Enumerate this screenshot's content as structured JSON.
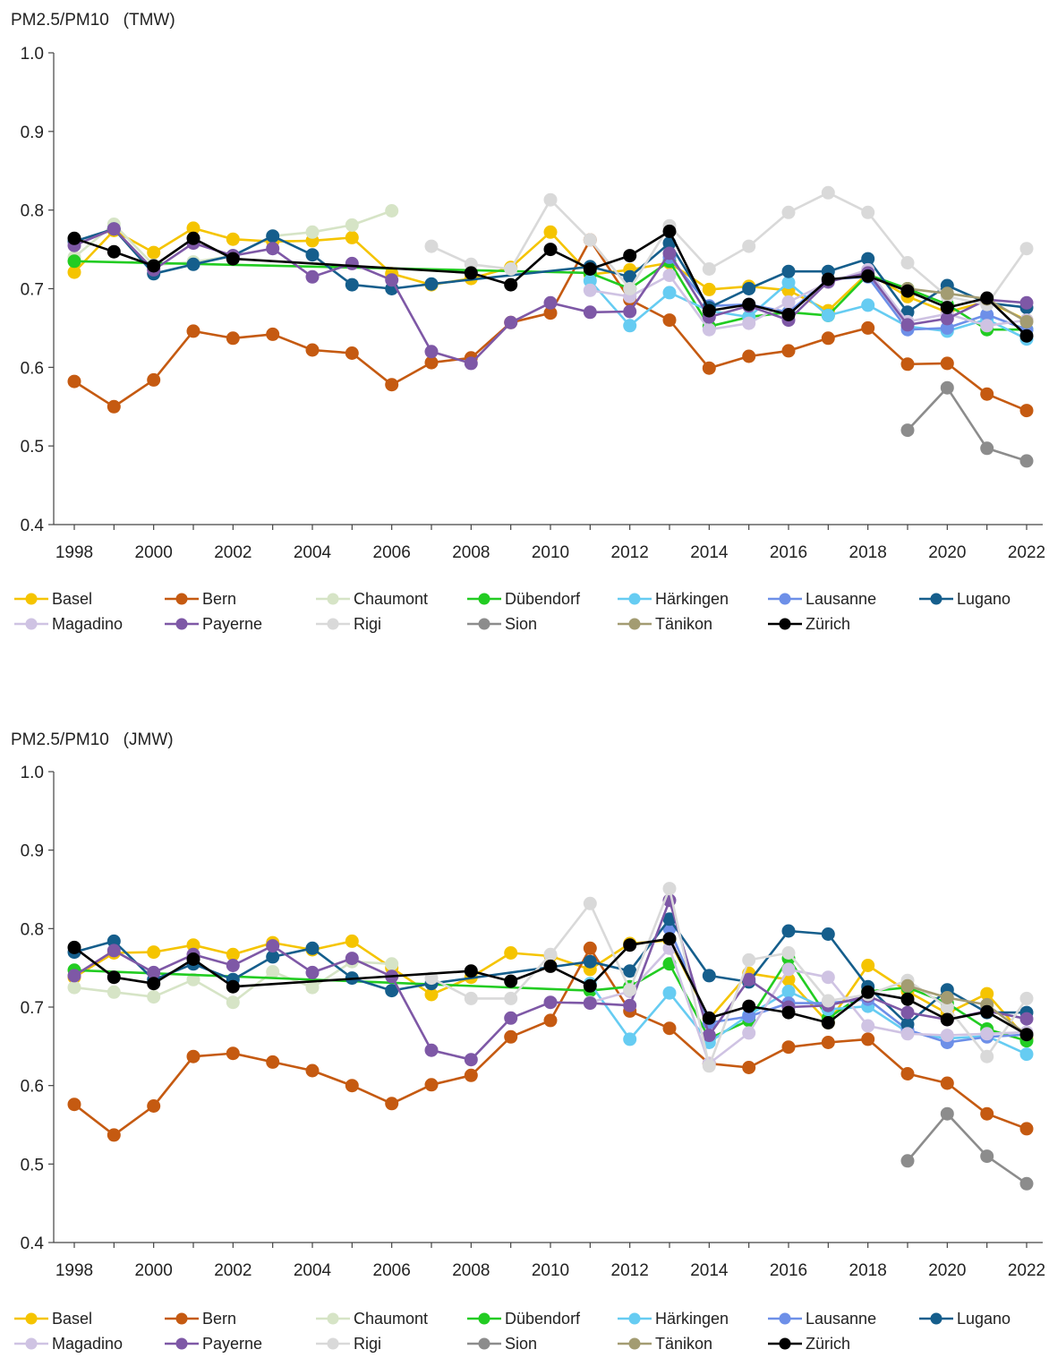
{
  "chart_data": [
    {
      "type": "line",
      "title": "PM2.5/PM10   (TMW)",
      "xlabel": "",
      "ylabel": "",
      "xlim": [
        1998,
        2022
      ],
      "ylim": [
        0.4,
        1.0
      ],
      "yticks": [
        "0.4",
        "0.5",
        "0.6",
        "0.7",
        "0.8",
        "0.9",
        "1.0"
      ],
      "xticks": [
        "1998",
        "2000",
        "2002",
        "2004",
        "2006",
        "2008",
        "2010",
        "2012",
        "2014",
        "2016",
        "2018",
        "2020",
        "2022"
      ],
      "legend_position": "bottom",
      "series": [
        {
          "name": "Basel",
          "color": "#f5c400",
          "x": [
            1998,
            1999,
            2000,
            2001,
            2002,
            2003,
            2004,
            2005,
            2006,
            2007,
            2008,
            2009,
            2010,
            2011,
            2012,
            2013,
            2014,
            2015,
            2016,
            2017,
            2018,
            2019,
            2020,
            2021,
            2022
          ],
          "y": [
            0.721,
            0.774,
            0.746,
            0.777,
            0.763,
            0.76,
            0.761,
            0.765,
            0.719,
            0.705,
            0.713,
            0.727,
            0.772,
            0.718,
            0.724,
            0.733,
            0.699,
            0.703,
            0.698,
            0.672,
            0.72,
            0.69,
            0.67,
            0.684,
            0.66
          ]
        },
        {
          "name": "Bern",
          "color": "#c55a11",
          "x": [
            1998,
            1999,
            2000,
            2001,
            2002,
            2003,
            2004,
            2005,
            2006,
            2007,
            2008,
            2009,
            2010,
            2011,
            2012,
            2013,
            2014,
            2015,
            2016,
            2017,
            2018,
            2019,
            2020,
            2021,
            2022
          ],
          "y": [
            0.582,
            0.55,
            0.584,
            0.646,
            0.637,
            0.642,
            0.622,
            0.618,
            0.578,
            0.606,
            0.612,
            0.657,
            0.669,
            0.762,
            0.686,
            0.66,
            0.599,
            0.614,
            0.621,
            0.637,
            0.65,
            0.604,
            0.605,
            0.566,
            0.545
          ]
        },
        {
          "name": "Chaumont",
          "color": "#d6e4c6",
          "x": [
            1998,
            1999,
            2000,
            2001,
            2002,
            2003,
            2004,
            2005,
            2006
          ],
          "y": [
            0.74,
            0.782,
            0.73,
            0.734,
            0.742,
            0.767,
            0.772,
            0.781,
            0.799
          ]
        },
        {
          "name": "Dübendorf",
          "color": "#22cc22",
          "x": [
            1998,
            2011,
            2012,
            2013,
            2014,
            2015,
            2016,
            2017,
            2018,
            2019,
            2020,
            2021,
            2022
          ],
          "y": [
            0.735,
            0.72,
            0.7,
            0.735,
            0.652,
            0.664,
            0.67,
            0.666,
            0.718,
            0.7,
            0.68,
            0.648,
            0.648
          ]
        },
        {
          "name": "Härkingen",
          "color": "#66ccf2",
          "x": [
            2011,
            2012,
            2013,
            2014,
            2015,
            2016,
            2017,
            2018,
            2019,
            2020,
            2021,
            2022
          ],
          "y": [
            0.71,
            0.653,
            0.695,
            0.672,
            0.664,
            0.708,
            0.666,
            0.679,
            0.652,
            0.646,
            0.661,
            0.636
          ]
        },
        {
          "name": "Lausanne",
          "color": "#6d8fe8",
          "x": [
            2013,
            2014,
            2015,
            2016,
            2017,
            2018,
            2019,
            2020,
            2021,
            2022
          ],
          "y": [
            0.74,
            0.678,
            0.68,
            0.67,
            0.712,
            0.715,
            0.648,
            0.65,
            0.667,
            0.648
          ]
        },
        {
          "name": "Lugano",
          "color": "#155e8c",
          "x": [
            1998,
            1999,
            2000,
            2001,
            2002,
            2003,
            2004,
            2005,
            2006,
            2007,
            2011,
            2012,
            2013,
            2014,
            2015,
            2016,
            2017,
            2018,
            2019,
            2020,
            2021,
            2022
          ],
          "y": [
            0.76,
            0.776,
            0.719,
            0.731,
            0.742,
            0.767,
            0.743,
            0.705,
            0.7,
            0.706,
            0.728,
            0.715,
            0.758,
            0.676,
            0.7,
            0.722,
            0.722,
            0.738,
            0.67,
            0.704,
            0.682,
            0.676
          ]
        },
        {
          "name": "Magadino",
          "color": "#cfc3e3",
          "x": [
            2011,
            2012,
            2013,
            2014,
            2015,
            2016,
            2017,
            2018,
            2019,
            2020,
            2021,
            2022
          ],
          "y": [
            0.698,
            0.69,
            0.717,
            0.648,
            0.656,
            0.683,
            0.708,
            0.724,
            0.658,
            0.668,
            0.653,
            0.66
          ]
        },
        {
          "name": "Payerne",
          "color": "#7e58a6",
          "x": [
            1998,
            1999,
            2000,
            2001,
            2002,
            2003,
            2004,
            2005,
            2006,
            2007,
            2008,
            2009,
            2010,
            2011,
            2012,
            2013,
            2014,
            2015,
            2016,
            2017,
            2018,
            2019,
            2020,
            2021,
            2022
          ],
          "y": [
            0.755,
            0.776,
            0.724,
            0.758,
            0.742,
            0.751,
            0.715,
            0.732,
            0.711,
            0.62,
            0.605,
            0.657,
            0.682,
            0.67,
            0.671,
            0.745,
            0.664,
            0.678,
            0.66,
            0.709,
            0.72,
            0.654,
            0.662,
            0.686,
            0.682
          ]
        },
        {
          "name": "Rigi",
          "color": "#d9d9d9",
          "x": [
            2007,
            2008,
            2009,
            2010,
            2011,
            2012,
            2013,
            2014,
            2015,
            2016,
            2017,
            2018,
            2019,
            2020,
            2021,
            2022
          ],
          "y": [
            0.754,
            0.731,
            0.725,
            0.813,
            0.762,
            0.7,
            0.78,
            0.725,
            0.754,
            0.797,
            0.822,
            0.797,
            0.733,
            0.69,
            0.68,
            0.751
          ]
        },
        {
          "name": "Sion",
          "color": "#8c8c8c",
          "x": [
            2019,
            2020,
            2021,
            2022
          ],
          "y": [
            0.52,
            0.574,
            0.497,
            0.481
          ]
        },
        {
          "name": "Tänikon",
          "color": "#a39c72",
          "x": [
            2019,
            2020,
            2021,
            2022
          ],
          "y": [
            0.7,
            0.694,
            0.687,
            0.658
          ]
        },
        {
          "name": "Zürich",
          "color": "#000000",
          "x": [
            1998,
            1999,
            2000,
            2001,
            2002,
            2008,
            2009,
            2010,
            2011,
            2012,
            2013,
            2014,
            2015,
            2016,
            2017,
            2018,
            2019,
            2020,
            2021,
            2022
          ],
          "y": [
            0.764,
            0.747,
            0.729,
            0.764,
            0.738,
            0.72,
            0.705,
            0.75,
            0.725,
            0.742,
            0.773,
            0.672,
            0.68,
            0.667,
            0.712,
            0.716,
            0.697,
            0.676,
            0.688,
            0.64
          ]
        }
      ]
    },
    {
      "type": "line",
      "title": "PM2.5/PM10   (JMW)",
      "xlabel": "",
      "ylabel": "",
      "xlim": [
        1998,
        2022
      ],
      "ylim": [
        0.4,
        1.0
      ],
      "yticks": [
        "0.4",
        "0.5",
        "0.6",
        "0.7",
        "0.8",
        "0.9",
        "1.0"
      ],
      "xticks": [
        "1998",
        "2000",
        "2002",
        "2004",
        "2006",
        "2008",
        "2010",
        "2012",
        "2014",
        "2016",
        "2018",
        "2020",
        "2022"
      ],
      "legend_position": "bottom",
      "series": [
        {
          "name": "Basel",
          "color": "#f5c400",
          "x": [
            1998,
            1999,
            2000,
            2001,
            2002,
            2003,
            2004,
            2005,
            2006,
            2007,
            2008,
            2009,
            2010,
            2011,
            2012,
            2013,
            2014,
            2015,
            2016,
            2017,
            2018,
            2019,
            2020,
            2021,
            2022
          ],
          "y": [
            0.738,
            0.769,
            0.77,
            0.779,
            0.767,
            0.782,
            0.773,
            0.784,
            0.75,
            0.716,
            0.738,
            0.769,
            0.765,
            0.748,
            0.781,
            0.785,
            0.685,
            0.743,
            0.735,
            0.68,
            0.753,
            0.72,
            0.692,
            0.717,
            0.66
          ]
        },
        {
          "name": "Bern",
          "color": "#c55a11",
          "x": [
            1998,
            1999,
            2000,
            2001,
            2002,
            2003,
            2004,
            2005,
            2006,
            2007,
            2008,
            2009,
            2010,
            2011,
            2012,
            2013,
            2014,
            2015,
            2016,
            2017,
            2018,
            2019,
            2020,
            2021,
            2022
          ],
          "y": [
            0.576,
            0.537,
            0.574,
            0.637,
            0.641,
            0.63,
            0.619,
            0.6,
            0.577,
            0.601,
            0.613,
            0.662,
            0.683,
            0.775,
            0.695,
            0.673,
            0.628,
            0.623,
            0.649,
            0.655,
            0.659,
            0.615,
            0.603,
            0.564,
            0.545
          ]
        },
        {
          "name": "Chaumont",
          "color": "#d6e4c6",
          "x": [
            1998,
            1999,
            2000,
            2001,
            2002,
            2003,
            2004,
            2005,
            2006
          ],
          "y": [
            0.725,
            0.719,
            0.713,
            0.735,
            0.706,
            0.745,
            0.725,
            0.758,
            0.755
          ]
        },
        {
          "name": "Dübendorf",
          "color": "#22cc22",
          "x": [
            1998,
            2011,
            2012,
            2013,
            2014,
            2015,
            2016,
            2017,
            2018,
            2019,
            2020,
            2021,
            2022
          ],
          "y": [
            0.747,
            0.721,
            0.726,
            0.755,
            0.66,
            0.683,
            0.762,
            0.686,
            0.72,
            0.725,
            0.705,
            0.672,
            0.657
          ]
        },
        {
          "name": "Härkingen",
          "color": "#66ccf2",
          "x": [
            2011,
            2012,
            2013,
            2014,
            2015,
            2016,
            2017,
            2018,
            2019,
            2020,
            2021,
            2022
          ],
          "y": [
            0.73,
            0.659,
            0.718,
            0.655,
            0.69,
            0.72,
            0.697,
            0.701,
            0.668,
            0.66,
            0.663,
            0.64
          ]
        },
        {
          "name": "Lausanne",
          "color": "#6d8fe8",
          "x": [
            2013,
            2014,
            2015,
            2016,
            2017,
            2018,
            2019,
            2020,
            2021,
            2022
          ],
          "y": [
            0.8,
            0.68,
            0.688,
            0.705,
            0.705,
            0.71,
            0.671,
            0.655,
            0.662,
            0.665
          ]
        },
        {
          "name": "Lugano",
          "color": "#155e8c",
          "x": [
            1998,
            1999,
            2000,
            2001,
            2002,
            2003,
            2004,
            2005,
            2006,
            2007,
            2011,
            2012,
            2013,
            2014,
            2015,
            2016,
            2017,
            2018,
            2019,
            2020,
            2021,
            2022
          ],
          "y": [
            0.77,
            0.784,
            0.735,
            0.755,
            0.735,
            0.764,
            0.775,
            0.737,
            0.721,
            0.73,
            0.758,
            0.746,
            0.812,
            0.74,
            0.732,
            0.797,
            0.793,
            0.726,
            0.678,
            0.722,
            0.693,
            0.693
          ]
        },
        {
          "name": "Magadino",
          "color": "#cfc3e3",
          "x": [
            2011,
            2012,
            2013,
            2014,
            2015,
            2016,
            2017,
            2018,
            2019,
            2020,
            2021,
            2022
          ],
          "y": [
            0.706,
            0.72,
            0.775,
            0.628,
            0.667,
            0.748,
            0.738,
            0.676,
            0.666,
            0.664,
            0.666,
            0.668
          ]
        },
        {
          "name": "Payerne",
          "color": "#7e58a6",
          "x": [
            1998,
            1999,
            2000,
            2001,
            2002,
            2003,
            2004,
            2005,
            2006,
            2007,
            2008,
            2009,
            2010,
            2011,
            2012,
            2013,
            2014,
            2015,
            2016,
            2017,
            2018,
            2019,
            2020,
            2021,
            2022
          ],
          "y": [
            0.74,
            0.772,
            0.744,
            0.767,
            0.753,
            0.778,
            0.744,
            0.762,
            0.739,
            0.645,
            0.633,
            0.686,
            0.706,
            0.705,
            0.702,
            0.836,
            0.664,
            0.735,
            0.7,
            0.702,
            0.714,
            0.693,
            0.684,
            0.695,
            0.685
          ]
        },
        {
          "name": "Rigi",
          "color": "#d9d9d9",
          "x": [
            2007,
            2008,
            2009,
            2010,
            2011,
            2012,
            2013,
            2014,
            2015,
            2016,
            2017,
            2018,
            2019,
            2020,
            2021,
            2022
          ],
          "y": [
            0.737,
            0.711,
            0.711,
            0.767,
            0.832,
            0.722,
            0.851,
            0.625,
            0.76,
            0.769,
            0.708,
            0.716,
            0.734,
            0.7,
            0.637,
            0.711
          ]
        },
        {
          "name": "Sion",
          "color": "#8c8c8c",
          "x": [
            2019,
            2020,
            2021,
            2022
          ],
          "y": [
            0.504,
            0.564,
            0.51,
            0.475
          ]
        },
        {
          "name": "Tänikon",
          "color": "#a39c72",
          "x": [
            2019,
            2020,
            2021,
            2022
          ],
          "y": [
            0.727,
            0.712,
            0.703,
            0.665
          ]
        },
        {
          "name": "Zürich",
          "color": "#000000",
          "x": [
            1998,
            1999,
            2000,
            2001,
            2002,
            2008,
            2009,
            2010,
            2011,
            2012,
            2013,
            2014,
            2015,
            2016,
            2017,
            2018,
            2019,
            2020,
            2021,
            2022
          ],
          "y": [
            0.776,
            0.738,
            0.73,
            0.761,
            0.726,
            0.746,
            0.733,
            0.752,
            0.727,
            0.779,
            0.787,
            0.686,
            0.701,
            0.693,
            0.68,
            0.719,
            0.71,
            0.684,
            0.694,
            0.665
          ]
        }
      ]
    }
  ]
}
